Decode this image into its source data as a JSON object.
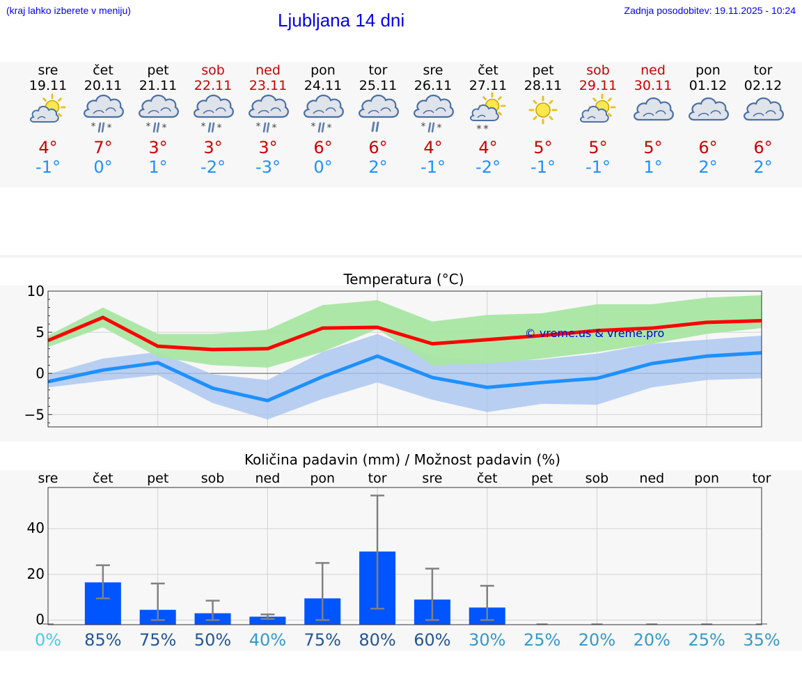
{
  "header": {
    "location_hint": "(kraj lahko izberete v meniju)",
    "title": "Ljubljana 14 dni",
    "updated": "Zadnja posodobitev: 19.11.2025 - 10:24"
  },
  "forecast": {
    "days": [
      {
        "dow": "sre",
        "date": "19.11",
        "weekend": false,
        "icon": "sun-cloud-icon",
        "tmax": "4°",
        "tmin": "-1°"
      },
      {
        "dow": "čet",
        "date": "20.11",
        "weekend": false,
        "icon": "rain-snow-icon",
        "tmax": "7°",
        "tmin": "0°"
      },
      {
        "dow": "pet",
        "date": "21.11",
        "weekend": false,
        "icon": "rain-snow-icon",
        "tmax": "3°",
        "tmin": "1°"
      },
      {
        "dow": "sob",
        "date": "22.11",
        "weekend": true,
        "icon": "rain-snow-icon",
        "tmax": "3°",
        "tmin": "-2°"
      },
      {
        "dow": "ned",
        "date": "23.11",
        "weekend": true,
        "icon": "rain-snow-icon",
        "tmax": "3°",
        "tmin": "-3°"
      },
      {
        "dow": "pon",
        "date": "24.11",
        "weekend": false,
        "icon": "rain-snow-icon",
        "tmax": "6°",
        "tmin": "0°"
      },
      {
        "dow": "tor",
        "date": "25.11",
        "weekend": false,
        "icon": "rain-icon",
        "tmax": "6°",
        "tmin": "2°"
      },
      {
        "dow": "sre",
        "date": "26.11",
        "weekend": false,
        "icon": "rain-snow-icon",
        "tmax": "4°",
        "tmin": "-1°"
      },
      {
        "dow": "čet",
        "date": "27.11",
        "weekend": false,
        "icon": "sun-cloud-snow-icon",
        "tmax": "4°",
        "tmin": "-2°"
      },
      {
        "dow": "pet",
        "date": "28.11",
        "weekend": false,
        "icon": "sun-icon",
        "tmax": "5°",
        "tmin": "-1°"
      },
      {
        "dow": "sob",
        "date": "29.11",
        "weekend": true,
        "icon": "sun-cloud-icon",
        "tmax": "5°",
        "tmin": "-1°"
      },
      {
        "dow": "ned",
        "date": "30.11",
        "weekend": true,
        "icon": "cloud-icon",
        "tmax": "5°",
        "tmin": "1°"
      },
      {
        "dow": "pon",
        "date": "01.12",
        "weekend": false,
        "icon": "cloud-icon",
        "tmax": "6°",
        "tmin": "2°"
      },
      {
        "dow": "tor",
        "date": "02.12",
        "weekend": false,
        "icon": "cloud-icon",
        "tmax": "6°",
        "tmin": "2°"
      }
    ]
  },
  "colors": {
    "link": "#0000ee",
    "weekend": "#cc0000",
    "tmax": "#cc0000",
    "tmin": "#1e90ff",
    "max_line": "#ff0000",
    "min_line": "#1e90ff",
    "max_band": "#a8e6a3",
    "min_band": "#a8c4f0",
    "precip_bar": "#0055ff",
    "whisker": "#808080",
    "pct_zero": "#44ccee",
    "pct_low": "#3399cc",
    "pct_high": "#225599"
  },
  "chart_data": [
    {
      "type": "line",
      "title": "Temperatura (°C)",
      "watermark": "© vreme.us & vreme.pro",
      "yticks": [
        10,
        5,
        0,
        -5
      ],
      "ylim": [
        -6.5,
        10
      ],
      "x": [
        "19.11",
        "20.11",
        "21.11",
        "22.11",
        "23.11",
        "24.11",
        "25.11",
        "26.11",
        "27.11",
        "28.11",
        "29.11",
        "30.11",
        "01.12",
        "02.12"
      ],
      "series": [
        {
          "values": [
            4.0,
            6.8,
            3.3,
            2.9,
            3.0,
            5.5,
            5.6,
            3.6,
            4.1,
            4.6,
            5.2,
            5.5,
            6.2,
            6.4
          ],
          "band_upper": [
            4.6,
            8.0,
            4.8,
            4.8,
            5.3,
            8.3,
            8.9,
            6.3,
            7.1,
            7.3,
            8.4,
            8.4,
            9.2,
            9.5
          ],
          "band_lower": [
            3.2,
            5.6,
            2.0,
            1.0,
            0.7,
            2.6,
            5.4,
            1.0,
            1.2,
            1.8,
            2.6,
            3.6,
            4.8,
            5.5
          ]
        },
        {
          "values": [
            -1.0,
            0.4,
            1.3,
            -1.8,
            -3.3,
            -0.4,
            2.1,
            -0.5,
            -1.7,
            -1.1,
            -0.6,
            1.2,
            2.1,
            2.5
          ],
          "band_upper": [
            -0.1,
            1.8,
            2.6,
            -0.1,
            -0.8,
            2.6,
            4.8,
            2.1,
            1.4,
            1.7,
            2.4,
            3.6,
            4.1,
            4.6
          ],
          "band_lower": [
            -1.7,
            -0.9,
            -0.2,
            -3.6,
            -5.6,
            -3.1,
            -1.1,
            -3.2,
            -4.7,
            -3.7,
            -3.8,
            -1.7,
            -0.8,
            -0.6
          ]
        }
      ]
    },
    {
      "type": "bar",
      "title": "Količina padavin (mm) / Možnost padavin (%)",
      "categories": [
        "sre",
        "čet",
        "pet",
        "sob",
        "ned",
        "pon",
        "tor",
        "sre",
        "čet",
        "pet",
        "sob",
        "ned",
        "pon",
        "tor"
      ],
      "values": [
        0,
        16.5,
        4.5,
        3,
        1.5,
        9.5,
        30,
        9,
        5.5,
        0,
        0,
        0,
        0,
        0
      ],
      "error_low": [
        0,
        9.5,
        0,
        0,
        0.5,
        0,
        5,
        0,
        0,
        0,
        0,
        0,
        0,
        0
      ],
      "error_high": [
        0,
        24,
        16,
        8.5,
        2.5,
        25,
        54.5,
        22.5,
        15,
        0,
        0,
        0,
        0,
        0
      ],
      "probability": [
        "0%",
        "85%",
        "75%",
        "50%",
        "40%",
        "75%",
        "80%",
        "60%",
        "30%",
        "25%",
        "20%",
        "20%",
        "25%",
        "35%"
      ],
      "probability_level": [
        "zero",
        "high",
        "high",
        "high",
        "low",
        "high",
        "high",
        "high",
        "low",
        "low",
        "low",
        "low",
        "low",
        "low"
      ],
      "yticks": [
        40,
        20,
        0
      ],
      "ylim": [
        -2,
        58
      ]
    }
  ]
}
